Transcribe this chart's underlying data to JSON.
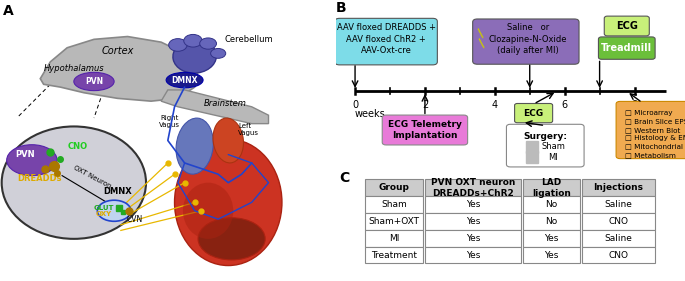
{
  "panel_A_label": "A",
  "panel_B_label": "B",
  "panel_C_label": "C",
  "box1_text": "AAV floxed DREADDS +\nAAV floxed ChR2 +\nAAV-Oxt-cre",
  "box1_color": "#7ddce8",
  "box2_text": "Saline   or\nClozapine-N-Oxide\n(daily after MI)",
  "box2_color": "#8b6db8",
  "box3_ecg_color": "#c8f07a",
  "box3_treadmill_color": "#6bbf3a",
  "ecg_telemetry_color": "#e87ad8",
  "ecg_box2_color": "#c8f07a",
  "outcomes_color": "#f0aa50",
  "table_header_bg": "#cccccc",
  "table_row_bg": "#ffffff",
  "table_border": "#888888",
  "table_headers": [
    "Group",
    "PVN OXT neuron\nDREADDs+ChR2",
    "LAD\nligation",
    "Injections"
  ],
  "table_rows": [
    [
      "Sham",
      "Yes",
      "No",
      "Saline"
    ],
    [
      "Sham+OXT",
      "Yes",
      "No",
      "CNO"
    ],
    [
      "MI",
      "Yes",
      "Yes",
      "Saline"
    ],
    [
      "Treatment",
      "Yes",
      "Yes",
      "CNO"
    ]
  ]
}
